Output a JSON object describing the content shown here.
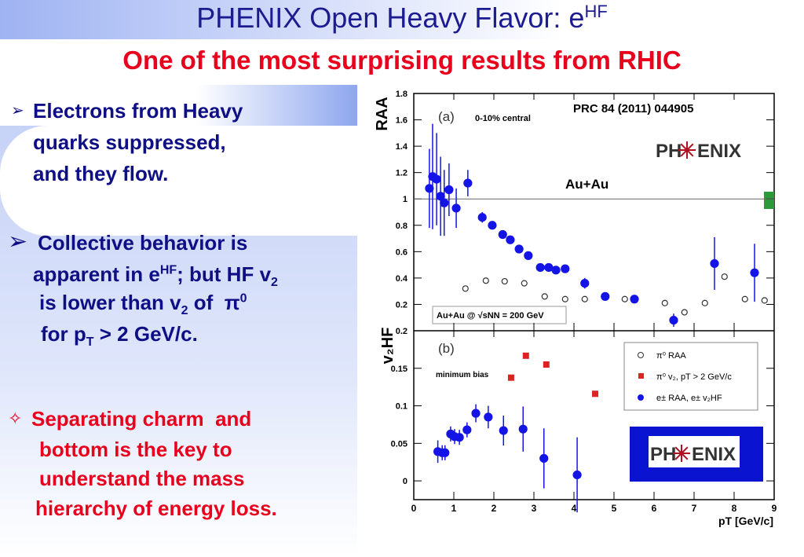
{
  "title": {
    "text": "PHENIX Open Heavy Flavor: e",
    "sup": "HF"
  },
  "subtitle": "One of the most surprising results from RHIC",
  "bullets": [
    {
      "marker": "➢",
      "lines": [
        [
          "Electrons from Heavy"
        ],
        [
          "quarks suppressed,"
        ],
        [
          "and they flow."
        ]
      ]
    },
    {
      "marker": "➢",
      "lines": [
        [
          "Collective behavior is"
        ],
        [
          "apparent in e",
          {
            "sup": "HF"
          },
          "; but HF v",
          {
            "sub": "2"
          }
        ],
        [
          "is lower than v",
          {
            "sub": "2"
          },
          " of  π",
          {
            "sup": "0"
          }
        ],
        [
          "for p",
          {
            "sub": "T"
          },
          " > 2 GeV/c."
        ]
      ]
    },
    {
      "marker": "✧",
      "lines": [
        [
          "Separating charm  and"
        ],
        [
          "bottom is the key to"
        ],
        [
          "understand the mass"
        ],
        [
          "hierarchy of energy loss."
        ]
      ]
    }
  ],
  "logos": [
    [
      "PH",
      "ENIX"
    ],
    [
      "PH",
      "ENIX"
    ]
  ],
  "chart_data": [
    {
      "type": "scatter",
      "panel_label": "(a)",
      "ylabel": "RAA",
      "annotations": [
        "0-10% central",
        "PRC 84 (2011) 044905",
        "Au+Au",
        "Au+Au @ √sNN = 200 GeV"
      ],
      "xlim": [
        0,
        9
      ],
      "ylim": [
        0,
        1.8
      ],
      "yticks": [
        0.2,
        0.4,
        0.6,
        0.8,
        1,
        1.2,
        1.4,
        1.6,
        1.8
      ],
      "hline": 1,
      "series": [
        {
          "color": "#1414e6",
          "marker": "filled",
          "x": [
            0.39,
            0.47,
            0.57,
            0.67,
            0.76,
            0.88,
            1.06,
            1.35,
            1.71,
            1.96,
            2.22,
            2.41,
            2.63,
            2.86,
            3.16,
            3.37,
            3.55,
            3.78,
            4.27,
            4.78,
            5.51,
            6.49,
            7.51,
            8.51
          ],
          "values": [
            1.08,
            1.17,
            1.15,
            1.02,
            0.97,
            1.07,
            0.93,
            1.12,
            0.86,
            0.8,
            0.73,
            0.69,
            0.62,
            0.57,
            0.48,
            0.48,
            0.46,
            0.47,
            0.36,
            0.26,
            0.24,
            0.08,
            0.51,
            0.44
          ],
          "errors": [
            0.3,
            0.4,
            0.35,
            0.3,
            0.25,
            0.2,
            0.15,
            0.1,
            0.04,
            0.03,
            0.02,
            0.02,
            0.02,
            0.02,
            0.02,
            0.02,
            0.02,
            0.02,
            0.04,
            0.03,
            0.03,
            0.05,
            0.2,
            0.22
          ]
        },
        {
          "name": "π⁰ RAA",
          "color": "#333333",
          "marker": "open",
          "x": [
            1.29,
            1.8,
            2.27,
            2.76,
            3.27,
            3.78,
            4.27,
            5.27,
            6.27,
            6.76,
            7.27,
            7.76,
            8.27,
            8.76
          ],
          "values": [
            0.32,
            0.38,
            0.375,
            0.36,
            0.26,
            0.24,
            0.24,
            0.24,
            0.21,
            0.14,
            0.21,
            0.41,
            0.24,
            0.23
          ]
        }
      ]
    },
    {
      "type": "scatter",
      "panel_label": "(b)",
      "ylabel": "v₂HF",
      "xlabel": "pT [GeV/c]",
      "annotations": [
        "minimum bias"
      ],
      "xlim": [
        0,
        9
      ],
      "ylim": [
        -0.025,
        0.2
      ],
      "xticks": [
        0,
        1,
        2,
        3,
        4,
        5,
        6,
        7,
        8,
        9
      ],
      "yticks": [
        0,
        0.05,
        0.1,
        0.15,
        0.2
      ],
      "series": [
        {
          "name": "e± RAA, e± v₂HF",
          "color": "#1414e6",
          "marker": "filled",
          "x": [
            0.6,
            0.71,
            0.78,
            0.92,
            1.02,
            1.14,
            1.33,
            1.55,
            1.86,
            2.24,
            2.73,
            3.25,
            4.08
          ],
          "values": [
            0.039,
            0.0375,
            0.0375,
            0.0625,
            0.059,
            0.058,
            0.068,
            0.09,
            0.085,
            0.067,
            0.069,
            0.03,
            0.008
          ],
          "errors": [
            0.015,
            0.01,
            0.01,
            0.01,
            0.01,
            0.01,
            0.01,
            0.012,
            0.015,
            0.02,
            0.03,
            0.04,
            0.05
          ]
        },
        {
          "name": "π⁰ v₂, pT > 2 GeV/c",
          "color": "#dd2222",
          "marker": "square",
          "x": [
            2.43,
            2.8,
            3.31,
            4.53
          ],
          "values": [
            0.1375,
            0.1667,
            0.155,
            0.116
          ]
        }
      ]
    }
  ]
}
